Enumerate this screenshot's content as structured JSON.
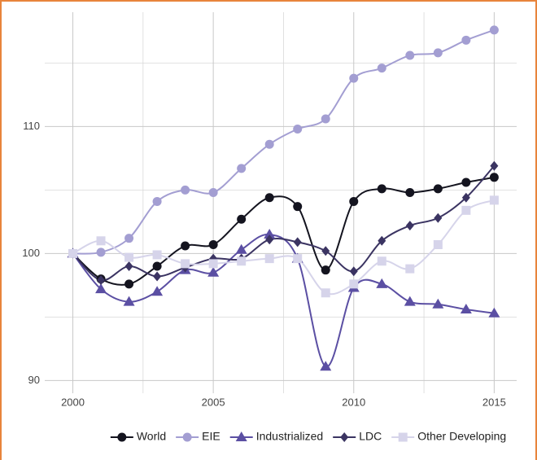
{
  "chart_data": {
    "type": "line",
    "x": [
      2000,
      2001,
      2002,
      2003,
      2004,
      2005,
      2006,
      2007,
      2008,
      2009,
      2010,
      2011,
      2012,
      2013,
      2014,
      2015
    ],
    "series": [
      {
        "name": "World",
        "color": "#14141f",
        "marker": "circle",
        "values": [
          100,
          98,
          97.6,
          99,
          100.6,
          100.7,
          102.7,
          104.4,
          103.7,
          98.7,
          104.1,
          105.1,
          104.8,
          105.1,
          105.6,
          106
        ]
      },
      {
        "name": "EIE",
        "color": "#a39ed2",
        "marker": "circle",
        "values": [
          100,
          100.1,
          101.2,
          104.1,
          105.0,
          104.8,
          106.7,
          108.6,
          109.8,
          110.6,
          113.8,
          114.6,
          115.6,
          115.8,
          116.8,
          117.6
        ]
      },
      {
        "name": "Industrialized",
        "color": "#5b4fa3",
        "marker": "triangle",
        "values": [
          100,
          97.2,
          96.2,
          97.0,
          98.7,
          98.5,
          100.3,
          101.5,
          99.6,
          91.1,
          97.3,
          97.6,
          96.2,
          96.0,
          95.6,
          95.3
        ]
      },
      {
        "name": "LDC",
        "color": "#3b3462",
        "marker": "diamond",
        "values": [
          100,
          97.9,
          99.0,
          98.2,
          98.9,
          99.6,
          99.6,
          101.1,
          100.9,
          100.2,
          98.6,
          101.0,
          102.2,
          102.8,
          104.4,
          106.9
        ]
      },
      {
        "name": "Other Developing",
        "color": "#d6d4ea",
        "marker": "square",
        "values": [
          100,
          101.0,
          99.7,
          99.9,
          99.2,
          99.2,
          99.4,
          99.6,
          99.6,
          96.9,
          97.6,
          99.4,
          98.8,
          100.7,
          103.4,
          104.2
        ]
      }
    ],
    "xlim": [
      1999,
      2015.8
    ],
    "xticks": [
      2000,
      2005,
      2010,
      2015
    ],
    "ylim": [
      89,
      119
    ],
    "yticks": [
      90,
      100,
      110
    ],
    "grid": true,
    "minor_grid": true,
    "legend": "bottom"
  }
}
